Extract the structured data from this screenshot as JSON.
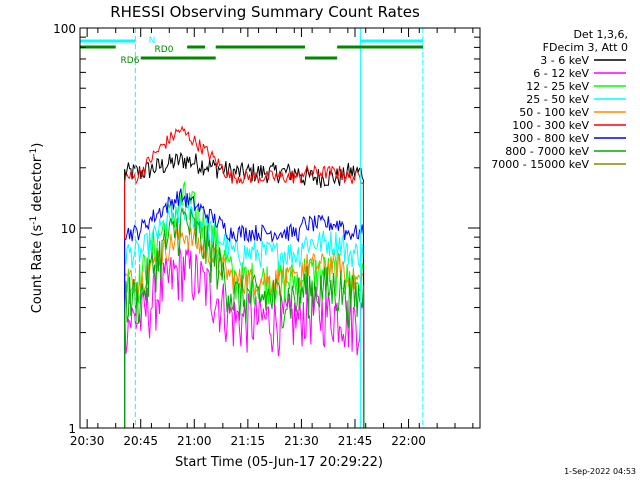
{
  "chart_data": {
    "type": "line",
    "title": "RHESSI Observing Summary Count Rates",
    "xlabel": "Start Time (05-Jun-17 20:29:22)",
    "ylabel_main": "Count Rate (s",
    "ylabel_exp": "-1",
    "ylabel_tail": " detector",
    "ylabel_end": ")",
    "ylim": [
      1,
      100
    ],
    "y_scale": "log",
    "xlim_min": [
      28,
      140
    ],
    "x_ticks": [
      "20:30",
      "20:45",
      "21:00",
      "21:15",
      "21:30",
      "21:45",
      "22:00"
    ],
    "x_tick_min": [
      30,
      45,
      60,
      75,
      90,
      105,
      120
    ],
    "y_ticks": [
      "1",
      "10",
      "100"
    ],
    "y_tick_vals": [
      1,
      10,
      100
    ],
    "info": [
      "Det 1,3,6,",
      "FDecim 3, Att 0"
    ],
    "timestamp": "1-Sep-2022 04:53",
    "grid": false,
    "legend_position": "right",
    "series": [
      {
        "name": "3 - 6 keV",
        "color": "#000000",
        "start": 40.5,
        "end": 107.5,
        "peak": 57,
        "base": 19,
        "peak_val": 22,
        "late": 18,
        "jitter": 0.12
      },
      {
        "name": "6 - 12 keV",
        "color": "#ff00ff",
        "start": 40.5,
        "end": 107.5,
        "peak": 57,
        "base": 3.5,
        "peak_val": 6.5,
        "late": 3.8,
        "jitter": 0.35
      },
      {
        "name": "12 - 25 keV",
        "color": "#00ff00",
        "start": 40.5,
        "end": 107.5,
        "peak": 57,
        "base": 5.5,
        "peak_val": 14,
        "late": 6,
        "jitter": 0.25
      },
      {
        "name": "25 - 50 keV",
        "color": "#00ffff",
        "start": 40.5,
        "end": 107.5,
        "peak": 57,
        "base": 7.5,
        "peak_val": 12.5,
        "late": 8.5,
        "jitter": 0.16
      },
      {
        "name": "50 - 100 keV",
        "color": "#ff8800",
        "start": 40.5,
        "end": 107.5,
        "peak": 57,
        "base": 5.5,
        "peak_val": 9.5,
        "late": 6.5,
        "jitter": 0.16
      },
      {
        "name": "100 - 300 keV",
        "color": "#ff0000",
        "start": 40.5,
        "end": 107.5,
        "peak": 56,
        "base": 18,
        "peak_val": 31,
        "late": 19,
        "jitter": 0.08
      },
      {
        "name": "300 - 800 keV",
        "color": "#0000ff",
        "start": 40.5,
        "end": 107.5,
        "peak": 56,
        "base": 9.5,
        "peak_val": 14.5,
        "late": 10.5,
        "jitter": 0.1
      },
      {
        "name": "800 - 7000 keV",
        "color": "#00aa00",
        "start": 40.5,
        "end": 107.5,
        "peak": 57,
        "base": 4.5,
        "peak_val": 11,
        "late": 5,
        "jitter": 0.3
      },
      {
        "name": "7000 - 15000 keV",
        "color": "#888800",
        "start": 40.5,
        "end": 107.5,
        "peak": 57,
        "base": 1.0,
        "peak_val": 1.0,
        "late": 1.0,
        "jitter": 0.0
      }
    ],
    "flags": [
      {
        "label": "N",
        "color": "#00ffff",
        "level": 1,
        "segments": [
          [
            28,
            43.5
          ],
          [
            106.5,
            124
          ]
        ]
      },
      {
        "label": "RD0",
        "color": "#008800",
        "level": 2,
        "segments": [
          [
            28,
            38
          ],
          [
            58,
            63
          ],
          [
            66,
            91
          ],
          [
            100,
            124
          ]
        ]
      },
      {
        "label": "RD6",
        "color": "#008800",
        "level": 3,
        "segments": [
          [
            45,
            66
          ],
          [
            91,
            100
          ]
        ]
      }
    ],
    "markers": [
      {
        "color": "#00ffff",
        "style": "solid",
        "min": 28
      },
      {
        "color": "#00ffff",
        "style": "dashed",
        "min": 43.5
      },
      {
        "color": "#00ffff",
        "style": "solid",
        "min": 106.5
      },
      {
        "color": "#00ffff",
        "style": "dashed",
        "min": 124
      }
    ]
  }
}
